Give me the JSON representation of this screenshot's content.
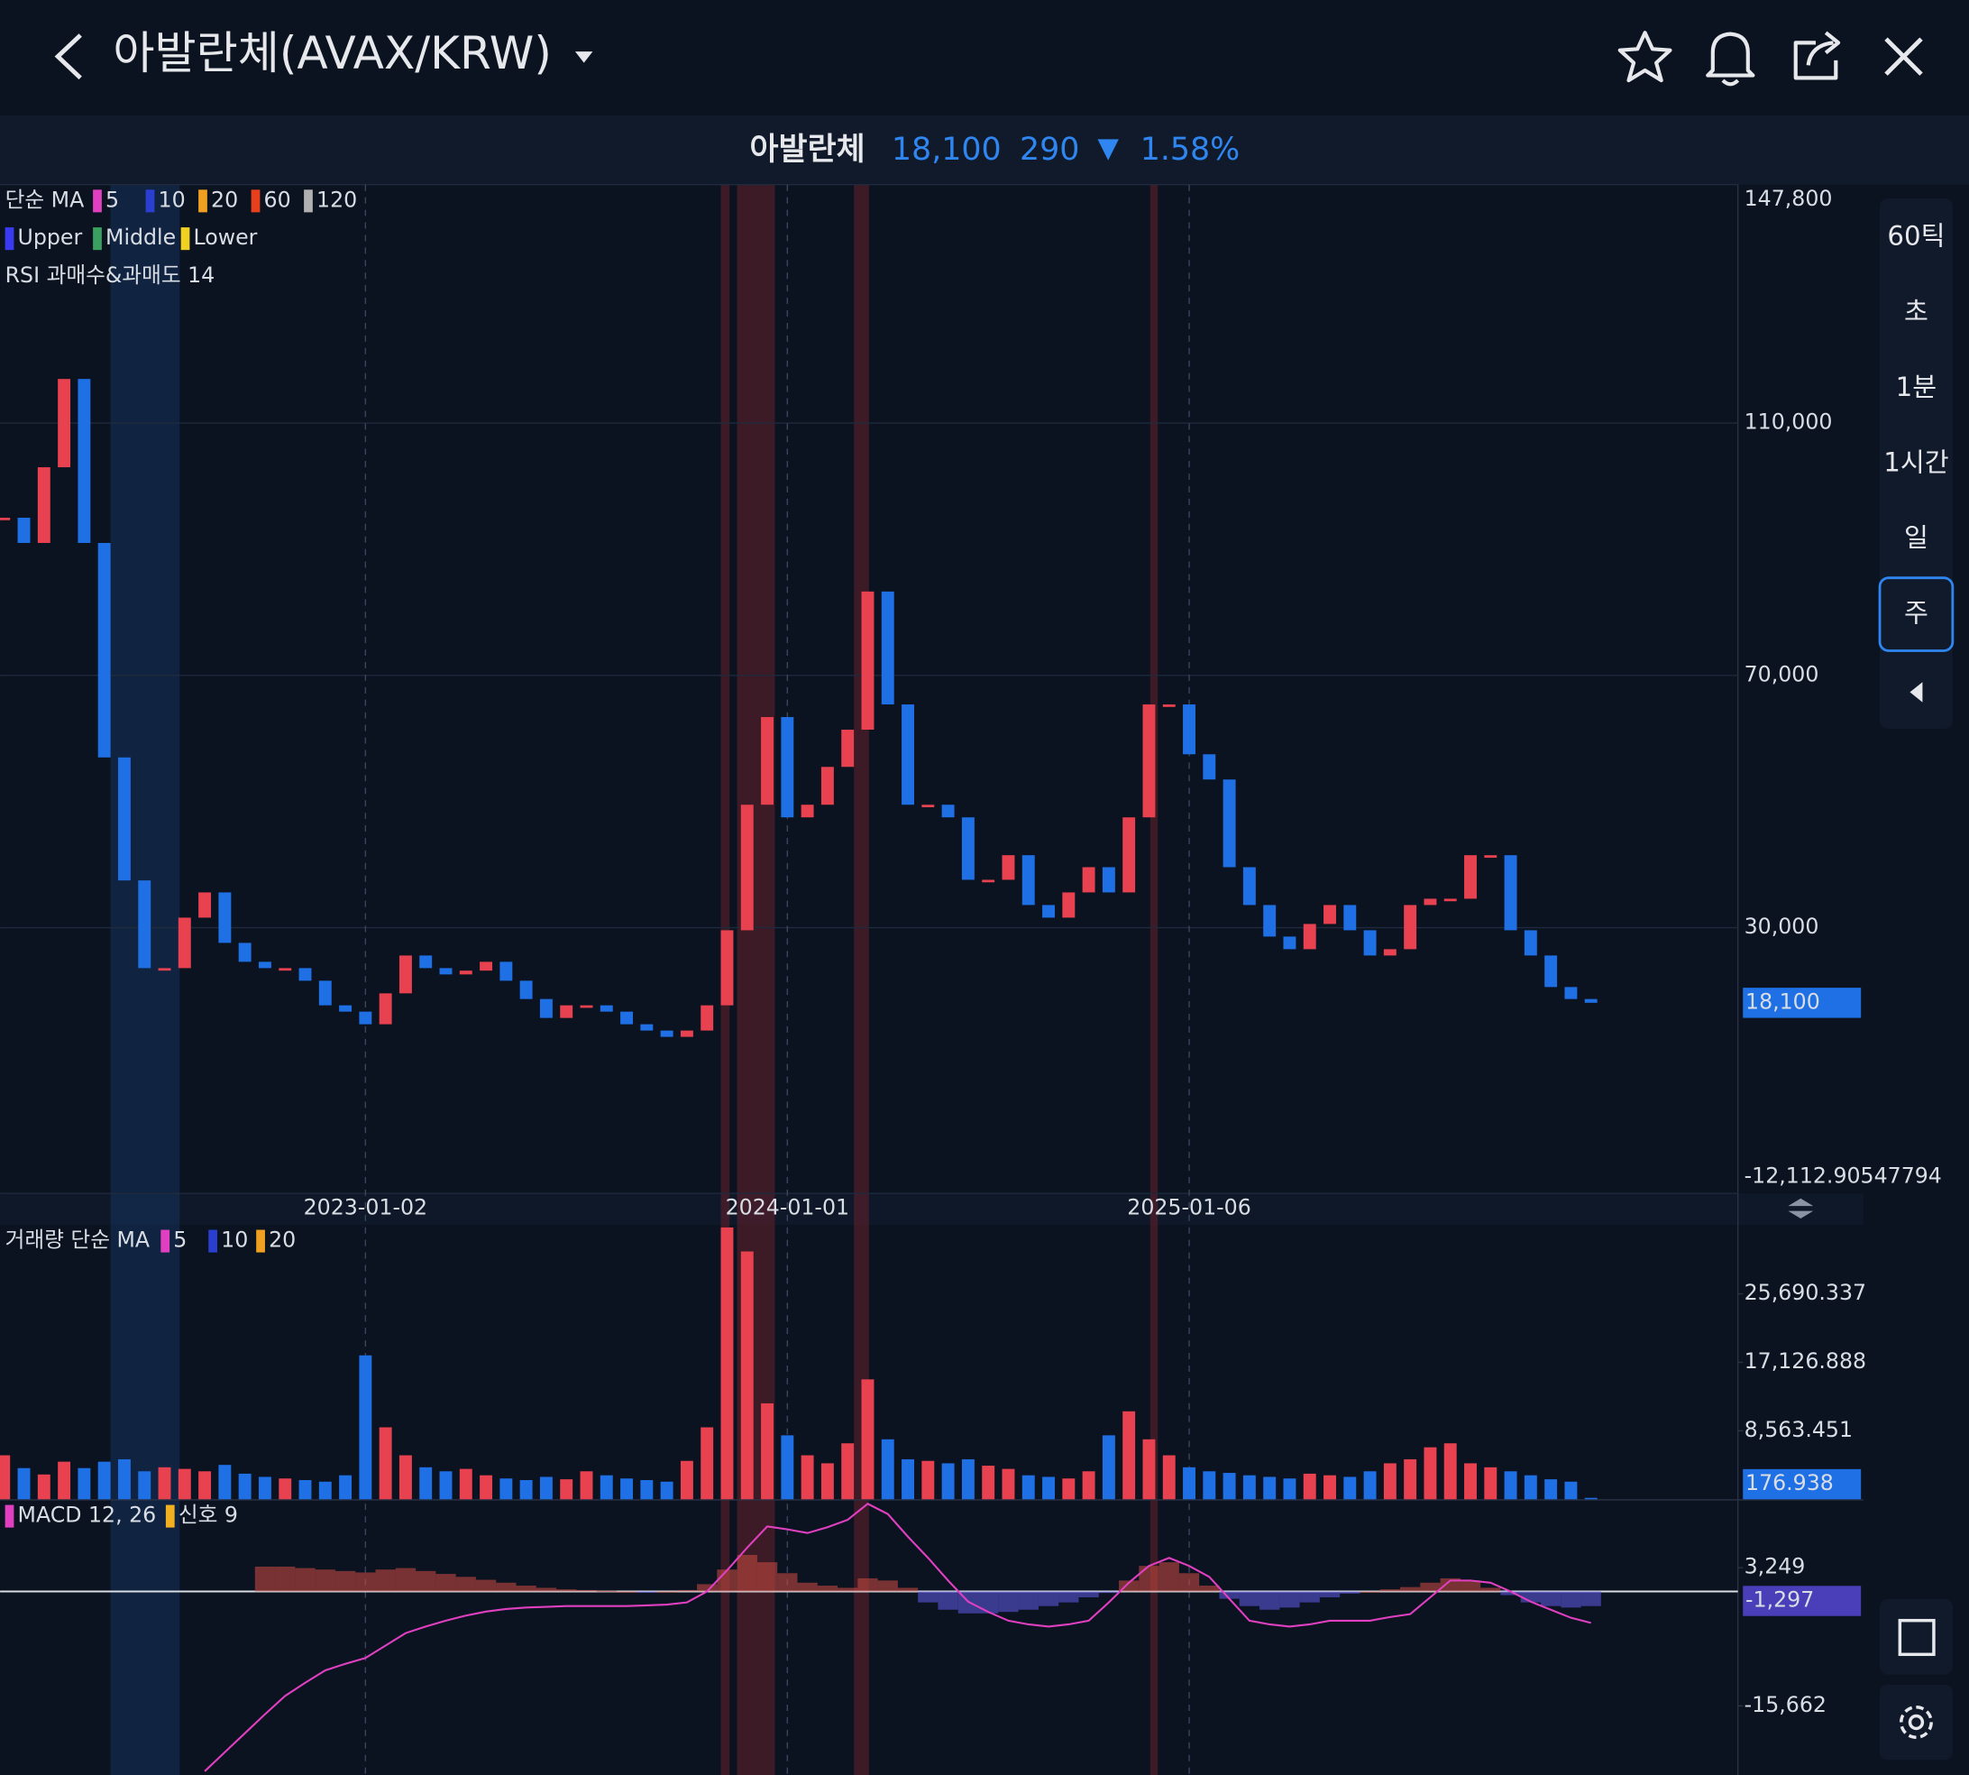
{
  "header": {
    "title": "아발란체(AVAX/KRW)"
  },
  "price_bar": {
    "name": "아발란체",
    "price": "18,100",
    "change": "290",
    "arrow": "▼",
    "change_pct": "1.58%"
  },
  "intervals": [
    "60틱",
    "초",
    "1분",
    "1시간",
    "일",
    "주"
  ],
  "chart_data": [
    {
      "type": "candlestick",
      "legend": [
        [
          "단순 MA",
          "5",
          "10",
          "20",
          "60",
          "120"
        ],
        [
          "Upper",
          "Middle",
          "Lower"
        ],
        [
          "RSI 과매수&과매도 14"
        ]
      ],
      "categories": [
        null,
        null,
        null,
        null,
        null,
        null,
        null,
        null,
        null,
        null,
        null,
        null,
        null,
        null,
        null,
        null,
        null,
        null,
        "2023-01-02",
        null,
        null,
        null,
        null,
        null,
        null,
        null,
        null,
        null,
        null,
        null,
        null,
        null,
        null,
        null,
        null,
        null,
        null,
        null,
        null,
        "2024-01-01",
        null,
        null,
        null,
        null,
        null,
        null,
        null,
        null,
        null,
        null,
        null,
        null,
        null,
        null,
        null,
        null,
        null,
        null,
        null,
        "2025-01-06",
        null,
        null,
        null,
        null,
        null,
        null,
        null,
        null,
        null,
        null,
        null,
        null,
        null,
        null,
        null,
        null,
        null,
        null,
        null,
        null
      ],
      "values": [
        95000,
        91000,
        103000,
        117000,
        91000,
        57000,
        37500,
        23600,
        23600,
        31600,
        35600,
        27600,
        24600,
        23600,
        23600,
        21600,
        17700,
        16700,
        14700,
        19600,
        25600,
        23600,
        22600,
        23200,
        24600,
        21600,
        18700,
        15700,
        17700,
        17700,
        16700,
        14700,
        13700,
        12700,
        13700,
        17700,
        29600,
        49500,
        63400,
        47500,
        49500,
        55500,
        61400,
        83300,
        65400,
        49500,
        49500,
        47500,
        37600,
        37600,
        41500,
        33600,
        31600,
        35600,
        39600,
        35600,
        47500,
        65400,
        65400,
        57500,
        53500,
        39600,
        33600,
        28600,
        26600,
        30600,
        33600,
        29600,
        25600,
        26600,
        33600,
        34600,
        34600,
        41500,
        41500,
        29600,
        25600,
        20600,
        18700,
        18100
      ],
      "up_color": "#e8414f",
      "down_color": "#1f6fe5",
      "ylim": [
        -12112.90547794,
        147800
      ],
      "yticks": [
        {
          "value": 147800,
          "label": "147,800"
        },
        {
          "value": 110000,
          "label": "110,000"
        },
        {
          "value": 70000,
          "label": "70,000"
        },
        {
          "value": 30000,
          "label": "30,000"
        },
        {
          "value": -12112.90547794,
          "label": "-12,112.90547794"
        }
      ],
      "last_value": {
        "value": 18100,
        "label": "18,100"
      },
      "grid": true
    },
    {
      "type": "bar",
      "legend": [
        "거래량 단순 MA",
        "5",
        "10",
        "20"
      ],
      "values": [
        5500,
        3900,
        3100,
        4700,
        3900,
        4700,
        5000,
        3500,
        4000,
        3800,
        3500,
        4300,
        3200,
        2800,
        2600,
        2400,
        2200,
        3000,
        18000,
        9000,
        5500,
        4000,
        3500,
        3800,
        3000,
        2600,
        2400,
        2800,
        2500,
        3500,
        3000,
        2600,
        2400,
        2200,
        4800,
        9000,
        34000,
        31000,
        12000,
        8000,
        5500,
        4500,
        7000,
        15000,
        7500,
        5000,
        4800,
        4500,
        5000,
        4200,
        3800,
        3000,
        2800,
        2600,
        3500,
        8000,
        11000,
        7500,
        5500,
        4000,
        3500,
        3300,
        3000,
        2800,
        2600,
        3200,
        3000,
        2800,
        3500,
        4500,
        5000,
        6500,
        7000,
        4500,
        4000,
        3500,
        3000,
        2500,
        2200,
        176.938
      ],
      "ylim": [
        0,
        34333
      ],
      "yticks": [
        {
          "value": 25690.337,
          "label": "25,690.337"
        },
        {
          "value": 17126.888,
          "label": "17,126.888"
        },
        {
          "value": 8563.451,
          "label": "8,563.451"
        }
      ],
      "last_value": {
        "value": 176.938,
        "label": "176.938"
      }
    },
    {
      "type": "macd",
      "legend": [
        "MACD 12, 26",
        "신호 9"
      ],
      "histogram": [
        null,
        null,
        null,
        null,
        null,
        null,
        null,
        null,
        null,
        null,
        null,
        null,
        null,
        3400,
        3400,
        3200,
        3000,
        2800,
        2600,
        3000,
        3200,
        2800,
        2400,
        2000,
        1600,
        1200,
        800,
        500,
        300,
        200,
        100,
        0,
        -100,
        0,
        200,
        1000,
        3000,
        5000,
        4000,
        2500,
        1200,
        800,
        500,
        1800,
        1500,
        500,
        -1500,
        -2500,
        -3000,
        -3000,
        -2800,
        -2500,
        -2000,
        -1500,
        -800,
        -200,
        1500,
        3500,
        4000,
        2500,
        800,
        -1000,
        -2000,
        -2500,
        -2200,
        -1500,
        -800,
        -300,
        0,
        300,
        600,
        1200,
        1800,
        1500,
        500,
        -500,
        -1500,
        -2000,
        -2200,
        -2000
      ],
      "macd": [
        null,
        null,
        null,
        null,
        null,
        null,
        null,
        null,
        null,
        null,
        -24600,
        -22000,
        -19400,
        -16800,
        -14300,
        -12500,
        -10800,
        -9900,
        -9100,
        -7400,
        -5700,
        -4800,
        -4000,
        -3300,
        -2750,
        -2400,
        -2200,
        -2100,
        -2000,
        -2000,
        -2000,
        -2000,
        -1900,
        -1800,
        -1500,
        0,
        2900,
        6000,
        8900,
        8500,
        8000,
        8800,
        9800,
        12000,
        10600,
        7500,
        4600,
        1500,
        -1400,
        -2800,
        -4000,
        -4500,
        -4800,
        -4500,
        -4000,
        -1500,
        1200,
        3500,
        4600,
        3500,
        2000,
        -1000,
        -4000,
        -4500,
        -4800,
        -4500,
        -4000,
        -4000,
        -4000,
        -3500,
        -3100,
        -800,
        1500,
        1500,
        1200,
        0,
        -1400,
        -2500,
        -3600,
        -4300
      ],
      "macd_color": "#e040c0",
      "up_color": "#c2473f",
      "down_color": "#5a55d8",
      "ylim": [
        -25117,
        12360
      ],
      "yticks": [
        {
          "value": 3249,
          "label": "3,249"
        },
        {
          "value": -15662,
          "label": "-15,662"
        }
      ],
      "last_value": {
        "value": -1297,
        "label": "-1,297"
      },
      "zero_line": true
    }
  ]
}
